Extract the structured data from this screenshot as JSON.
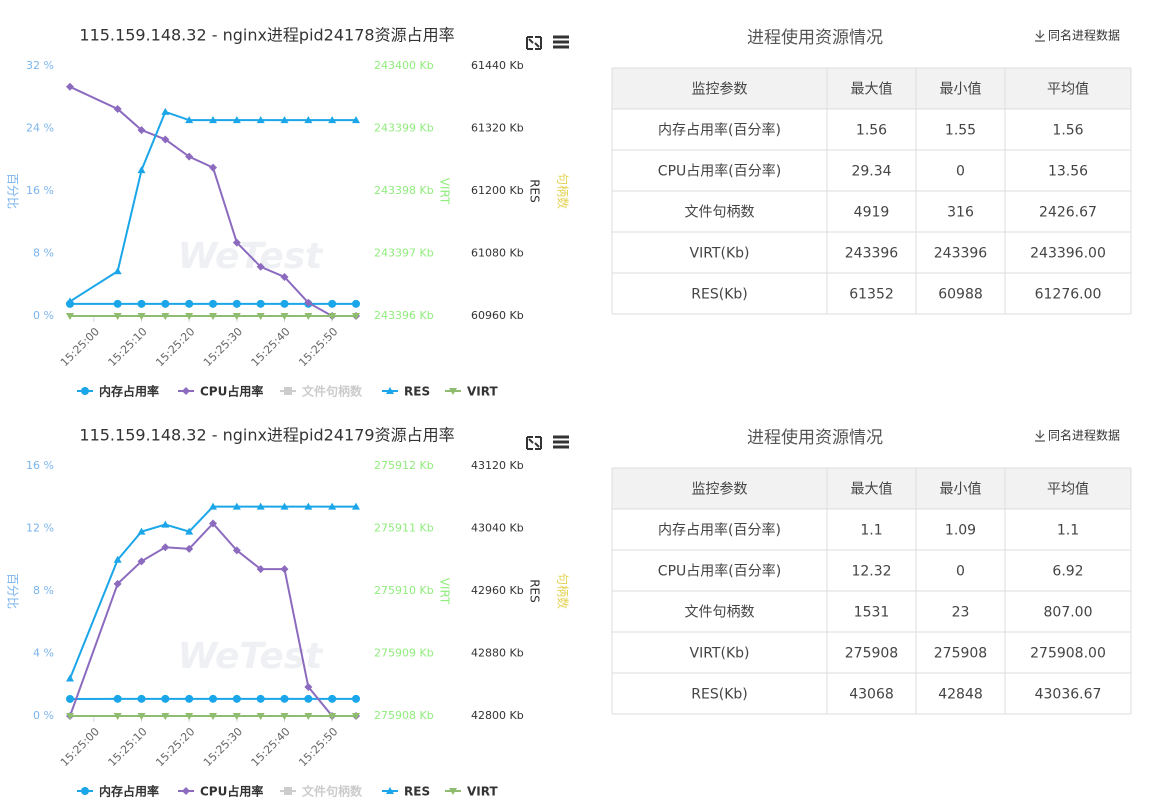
{
  "chart_data": [
    {
      "type": "line",
      "title": "115.159.148.32 - nginx进程pid24178资源占用率",
      "watermark": "WeTest",
      "x": [
        "15:24:55",
        "15:25:05",
        "15:25:10",
        "15:25:15",
        "15:25:20",
        "15:25:25",
        "15:25:30",
        "15:25:35",
        "15:25:40",
        "15:25:45",
        "15:25:50",
        "15:25:55"
      ],
      "xlim": [
        "15:24:55",
        "15:25:55"
      ],
      "xticks": [
        "15:25:00",
        "15:25:10",
        "15:25:20",
        "15:25:30",
        "15:25:40",
        "15:25:50"
      ],
      "ylabel": "百分比",
      "ylim": [
        0,
        32
      ],
      "yticks": [
        {
          "value": 0,
          "label": "0 %"
        },
        {
          "value": 8,
          "label": "8 %"
        },
        {
          "value": 16,
          "label": "16 %"
        },
        {
          "value": 24,
          "label": "24 %"
        },
        {
          "value": 32,
          "label": "32 %"
        }
      ],
      "y2label": "VIRT",
      "y2lim": [
        243396,
        243400
      ],
      "y2ticks": [
        {
          "value": 243396,
          "label": "243396 Kb"
        },
        {
          "value": 243397,
          "label": "243397 Kb"
        },
        {
          "value": 243398,
          "label": "243398 Kb"
        },
        {
          "value": 243399,
          "label": "243399 Kb"
        },
        {
          "value": 243400,
          "label": "243400 Kb"
        }
      ],
      "y3label": "RES",
      "y3lim": [
        60960,
        61440
      ],
      "y3ticks": [
        {
          "value": 60960,
          "label": "60960 Kb"
        },
        {
          "value": 61080,
          "label": "61080 Kb"
        },
        {
          "value": 61200,
          "label": "61200 Kb"
        },
        {
          "value": 61320,
          "label": "61320 Kb"
        },
        {
          "value": 61440,
          "label": "61440 Kb"
        }
      ],
      "y4label": "句柄数",
      "series": [
        {
          "name": "内存占用率",
          "color": "#1aa6e8",
          "marker": "circle",
          "axis": "y",
          "values": [
            1.55,
            1.56,
            1.56,
            1.56,
            1.56,
            1.56,
            1.56,
            1.56,
            1.56,
            1.56,
            1.56,
            1.56
          ]
        },
        {
          "name": "CPU占用率",
          "color": "#8c6bbf",
          "marker": "diamond",
          "axis": "y",
          "values": [
            29.34,
            26.5,
            23.8,
            22.6,
            20.4,
            19.0,
            9.4,
            6.3,
            5.0,
            1.7,
            0,
            0
          ]
        },
        {
          "name": "文件句柄数",
          "color": "#cccccc",
          "marker": "square",
          "axis": "y4",
          "visible": false
        },
        {
          "name": "RES",
          "color": "#1aa6e8",
          "marker": "triangle",
          "axis": "y3",
          "values": [
            60988,
            61046,
            61240,
            61352,
            61336,
            61336,
            61336,
            61336,
            61336,
            61336,
            61336,
            61336
          ]
        },
        {
          "name": "VIRT",
          "color": "#8fbc6f",
          "marker": "triangle-down",
          "axis": "y2",
          "values": [
            243396,
            243396,
            243396,
            243396,
            243396,
            243396,
            243396,
            243396,
            243396,
            243396,
            243396,
            243396
          ]
        }
      ]
    },
    {
      "type": "line",
      "title": "115.159.148.32 - nginx进程pid24179资源占用率",
      "watermark": "WeTest",
      "x": [
        "15:24:55",
        "15:25:05",
        "15:25:10",
        "15:25:15",
        "15:25:20",
        "15:25:25",
        "15:25:30",
        "15:25:35",
        "15:25:40",
        "15:25:45",
        "15:25:50",
        "15:25:55"
      ],
      "xlim": [
        "15:24:55",
        "15:25:55"
      ],
      "xticks": [
        "15:25:00",
        "15:25:10",
        "15:25:20",
        "15:25:30",
        "15:25:40",
        "15:25:50"
      ],
      "ylabel": "百分比",
      "ylim": [
        0,
        16
      ],
      "yticks": [
        {
          "value": 0,
          "label": "0 %"
        },
        {
          "value": 4,
          "label": "4 %"
        },
        {
          "value": 8,
          "label": "8 %"
        },
        {
          "value": 12,
          "label": "12 %"
        },
        {
          "value": 16,
          "label": "16 %"
        }
      ],
      "y2label": "VIRT",
      "y2lim": [
        275908,
        275912
      ],
      "y2ticks": [
        {
          "value": 275908,
          "label": "275908 Kb"
        },
        {
          "value": 275909,
          "label": "275909 Kb"
        },
        {
          "value": 275910,
          "label": "275910 Kb"
        },
        {
          "value": 275911,
          "label": "275911 Kb"
        },
        {
          "value": 275912,
          "label": "275912 Kb"
        }
      ],
      "y3label": "RES",
      "y3lim": [
        42800,
        43120
      ],
      "y3ticks": [
        {
          "value": 42800,
          "label": "42800 Kb"
        },
        {
          "value": 42880,
          "label": "42880 Kb"
        },
        {
          "value": 42960,
          "label": "42960 Kb"
        },
        {
          "value": 43040,
          "label": "43040 Kb"
        },
        {
          "value": 43120,
          "label": "43120 Kb"
        }
      ],
      "y4label": "句柄数",
      "series": [
        {
          "name": "内存占用率",
          "color": "#1aa6e8",
          "marker": "circle",
          "axis": "y",
          "values": [
            1.09,
            1.1,
            1.1,
            1.1,
            1.1,
            1.1,
            1.1,
            1.1,
            1.1,
            1.1,
            1.1,
            1.1
          ]
        },
        {
          "name": "CPU占用率",
          "color": "#8c6bbf",
          "marker": "diamond",
          "axis": "y",
          "values": [
            0,
            8.46,
            9.9,
            10.8,
            10.7,
            12.32,
            10.6,
            9.4,
            9.4,
            1.86,
            0,
            0
          ]
        },
        {
          "name": "文件句柄数",
          "color": "#cccccc",
          "marker": "square",
          "axis": "y4",
          "visible": false
        },
        {
          "name": "RES",
          "color": "#1aa6e8",
          "marker": "triangle",
          "axis": "y3",
          "values": [
            42848,
            43000,
            43036,
            43045,
            43036,
            43068,
            43068,
            43068,
            43068,
            43068,
            43068,
            43068
          ]
        },
        {
          "name": "VIRT",
          "color": "#8fbc6f",
          "marker": "triangle-down",
          "axis": "y2",
          "values": [
            275908,
            275908,
            275908,
            275908,
            275908,
            275908,
            275908,
            275908,
            275908,
            275908,
            275908,
            275908
          ]
        }
      ]
    }
  ],
  "tables": [
    {
      "title": "进程使用资源情况",
      "link": "同名进程数据",
      "header": [
        "监控参数",
        "最大值",
        "最小值",
        "平均值"
      ],
      "rows": [
        [
          "内存占用率(百分率)",
          1.56,
          1.55,
          1.56
        ],
        [
          "CPU占用率(百分率)",
          29.34,
          0,
          13.56
        ],
        [
          "文件句柄数",
          4919,
          316,
          2426.67
        ],
        [
          "VIRT(Kb)",
          243396,
          243396,
          "243396.00"
        ],
        [
          "RES(Kb)",
          61352,
          60988,
          "61276.00"
        ]
      ]
    },
    {
      "title": "进程使用资源情况",
      "link": "同名进程数据",
      "header": [
        "监控参数",
        "最大值",
        "最小值",
        "平均值"
      ],
      "rows": [
        [
          "内存占用率(百分率)",
          1.1,
          1.09,
          1.1
        ],
        [
          "CPU占用率(百分率)",
          12.32,
          0,
          6.92
        ],
        [
          "文件句柄数",
          1531,
          23,
          "807.00"
        ],
        [
          "VIRT(Kb)",
          275908,
          275908,
          "275908.00"
        ],
        [
          "RES(Kb)",
          43068,
          42848,
          43036.67
        ]
      ]
    }
  ]
}
